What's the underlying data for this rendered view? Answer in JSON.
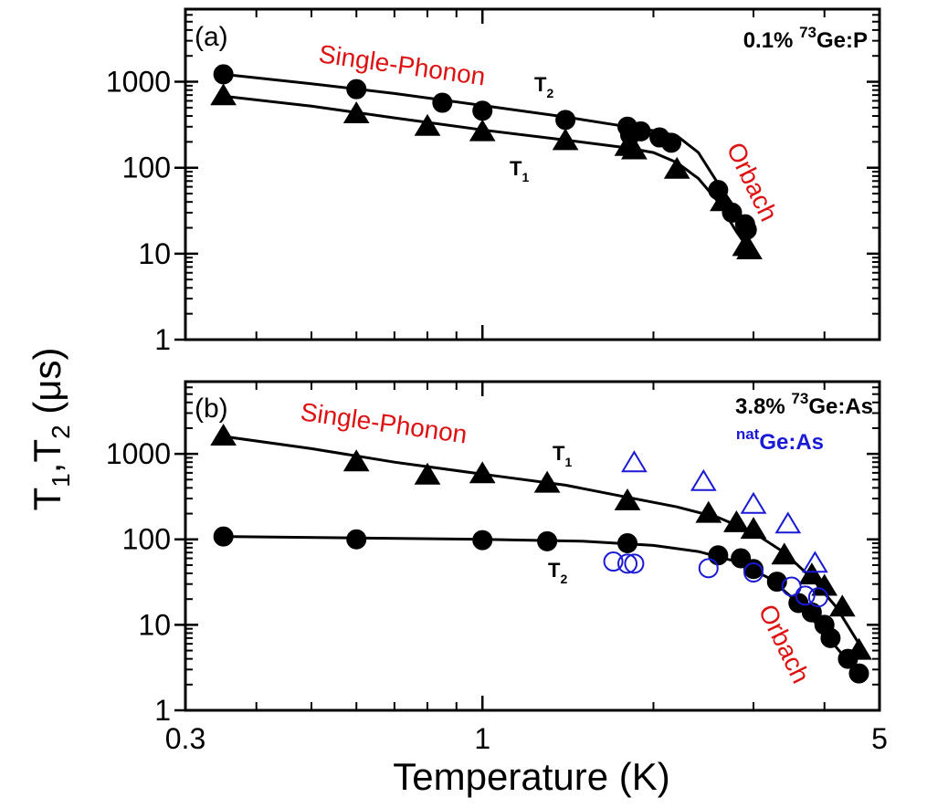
{
  "colors": {
    "black": "#000000",
    "red": "#dd1111",
    "blue": "#1a1ad6"
  },
  "figure": {
    "ylabel": {
      "T1": "T",
      "sub1": "1",
      "comma": ",",
      "T2": "T",
      "sub2": "2",
      "unit": " (μs)"
    },
    "xlabel": "Temperature (K)",
    "xticks": [
      {
        "value": 0.3,
        "label": "0.3"
      },
      {
        "value": 1,
        "label": "1"
      },
      {
        "value": 5,
        "label": "5"
      }
    ],
    "yticks": [
      {
        "value": 1,
        "label": "1"
      },
      {
        "value": 10,
        "label": "10"
      },
      {
        "value": 100,
        "label": "100"
      },
      {
        "value": 1000,
        "label": "1000"
      }
    ]
  },
  "chart_data": [
    {
      "type": "scatter",
      "panel": "(a)",
      "sample": {
        "pct": "0.1% ",
        "iso": "73",
        "rest": "Ge:P"
      },
      "xscale": "log",
      "yscale": "log",
      "xlim": [
        0.3,
        5
      ],
      "ylim": [
        1,
        7000
      ],
      "annotations": {
        "single_phonon": "Single-Phonon",
        "orbach": "Orbach",
        "t2": {
          "main": "T",
          "sub": "2"
        },
        "t1": {
          "main": "T",
          "sub": "1"
        }
      },
      "series": [
        {
          "name": "T2",
          "marker": "circle",
          "filled": true,
          "color": "black",
          "points": [
            [
              0.35,
              1220
            ],
            [
              0.6,
              820
            ],
            [
              0.85,
              570
            ],
            [
              1.0,
              460
            ],
            [
              1.4,
              360
            ],
            [
              1.8,
              300
            ],
            [
              1.82,
              240
            ],
            [
              1.9,
              265
            ],
            [
              2.05,
              225
            ],
            [
              2.15,
              195
            ],
            [
              2.6,
              55
            ],
            [
              2.75,
              30
            ],
            [
              2.9,
              22
            ],
            [
              2.92,
              19
            ]
          ],
          "fit": [
            [
              0.35,
              1220
            ],
            [
              0.5,
              950
            ],
            [
              0.7,
              730
            ],
            [
              1.0,
              530
            ],
            [
              1.4,
              390
            ],
            [
              1.8,
              300
            ],
            [
              2.0,
              270
            ],
            [
              2.2,
              235
            ],
            [
              2.4,
              150
            ],
            [
              2.6,
              65
            ],
            [
              2.8,
              32
            ],
            [
              2.95,
              20
            ]
          ]
        },
        {
          "name": "T1",
          "marker": "triangle",
          "filled": true,
          "color": "black",
          "points": [
            [
              0.35,
              680
            ],
            [
              0.6,
              420
            ],
            [
              0.8,
              300
            ],
            [
              1.0,
              260
            ],
            [
              1.4,
              205
            ],
            [
              1.8,
              175
            ],
            [
              1.85,
              160
            ],
            [
              2.2,
              95
            ],
            [
              2.65,
              40
            ],
            [
              2.9,
              12
            ],
            [
              2.95,
              11
            ]
          ],
          "fit": [
            [
              0.35,
              680
            ],
            [
              0.5,
              520
            ],
            [
              0.7,
              380
            ],
            [
              1.0,
              275
            ],
            [
              1.4,
              210
            ],
            [
              1.8,
              170
            ],
            [
              2.0,
              150
            ],
            [
              2.2,
              115
            ],
            [
              2.4,
              75
            ],
            [
              2.6,
              40
            ],
            [
              2.8,
              18
            ],
            [
              2.95,
              11
            ]
          ]
        }
      ]
    },
    {
      "type": "scatter",
      "panel": "(b)",
      "sample": {
        "pct": "3.8% ",
        "iso": "73",
        "rest": "Ge:As"
      },
      "sample2": {
        "iso": "nat",
        "rest": "Ge:As"
      },
      "xscale": "log",
      "yscale": "log",
      "xlim": [
        0.3,
        5
      ],
      "ylim": [
        1,
        7000
      ],
      "annotations": {
        "single_phonon": "Single-Phonon",
        "orbach": "Orbach",
        "t1": {
          "main": "T",
          "sub": "1"
        },
        "t2": {
          "main": "T",
          "sub": "2"
        }
      },
      "series": [
        {
          "name": "T1",
          "marker": "triangle",
          "filled": true,
          "color": "black",
          "points": [
            [
              0.35,
              1600
            ],
            [
              0.6,
              800
            ],
            [
              0.8,
              560
            ],
            [
              1.0,
              580
            ],
            [
              1.3,
              450
            ],
            [
              1.8,
              280
            ],
            [
              2.5,
              200
            ],
            [
              2.8,
              155
            ],
            [
              3.0,
              130
            ],
            [
              3.4,
              65
            ],
            [
              3.8,
              38
            ],
            [
              4.0,
              28
            ],
            [
              4.3,
              16
            ],
            [
              4.6,
              5
            ]
          ],
          "fit": [
            [
              0.35,
              1600
            ],
            [
              0.5,
              1150
            ],
            [
              0.7,
              800
            ],
            [
              1.0,
              580
            ],
            [
              1.4,
              430
            ],
            [
              1.8,
              310
            ],
            [
              2.2,
              240
            ],
            [
              2.6,
              180
            ],
            [
              3.0,
              120
            ],
            [
              3.4,
              70
            ],
            [
              3.8,
              35
            ],
            [
              4.2,
              16
            ],
            [
              4.6,
              6
            ]
          ]
        },
        {
          "name": "T2",
          "marker": "circle",
          "filled": true,
          "color": "black",
          "points": [
            [
              0.35,
              108
            ],
            [
              0.6,
              100
            ],
            [
              1.0,
              98
            ],
            [
              1.3,
              95
            ],
            [
              1.8,
              90
            ],
            [
              2.6,
              65
            ],
            [
              2.85,
              60
            ],
            [
              3.0,
              45
            ],
            [
              3.3,
              32
            ],
            [
              3.6,
              18
            ],
            [
              3.8,
              14
            ],
            [
              4.0,
              10
            ],
            [
              4.1,
              7
            ],
            [
              4.4,
              4
            ],
            [
              4.6,
              2.7
            ]
          ],
          "fit": [
            [
              0.35,
              108
            ],
            [
              0.6,
              104
            ],
            [
              1.0,
              100
            ],
            [
              1.5,
              95
            ],
            [
              2.0,
              85
            ],
            [
              2.4,
              72
            ],
            [
              2.8,
              55
            ],
            [
              3.2,
              35
            ],
            [
              3.6,
              18
            ],
            [
              4.0,
              8
            ],
            [
              4.3,
              4.5
            ],
            [
              4.6,
              2.6
            ]
          ]
        },
        {
          "name": "natGe:As T1",
          "marker": "triangle",
          "filled": false,
          "color": "blue",
          "points": [
            [
              1.85,
              780
            ],
            [
              2.45,
              470
            ],
            [
              3.0,
              255
            ],
            [
              3.45,
              150
            ],
            [
              3.85,
              52
            ]
          ]
        },
        {
          "name": "natGe:As T2",
          "marker": "circle",
          "filled": false,
          "color": "blue",
          "points": [
            [
              1.7,
              55
            ],
            [
              1.8,
              52
            ],
            [
              1.85,
              52
            ],
            [
              2.5,
              46
            ],
            [
              3.0,
              41
            ],
            [
              3.5,
              28
            ],
            [
              3.7,
              22
            ],
            [
              3.9,
              21
            ]
          ]
        }
      ]
    }
  ]
}
